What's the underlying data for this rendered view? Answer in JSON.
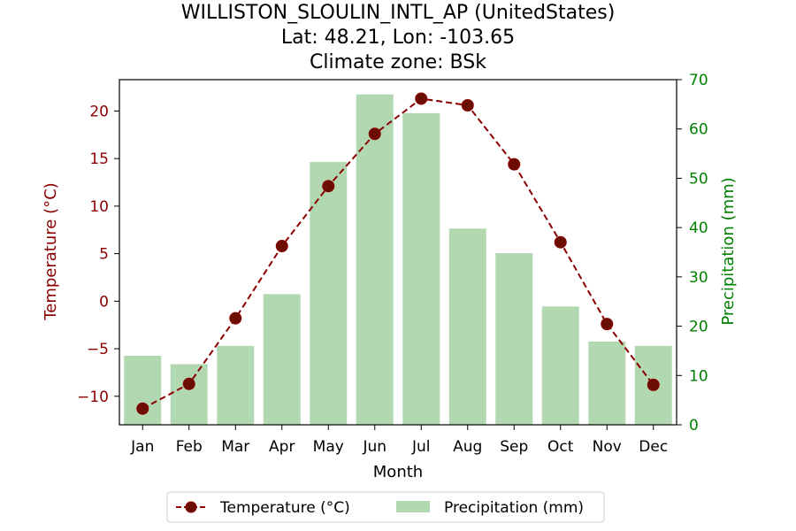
{
  "chart_data": {
    "type": "bar+line",
    "title_lines": [
      "WILLISTON_SLOULIN_INTL_AP (UnitedStates)",
      "Lat: 48.21, Lon: -103.65",
      "Climate zone: BSk"
    ],
    "xlabel": "Month",
    "ylabel_left": "Temperature (°C)",
    "ylabel_right": "Precipitation (mm)",
    "categories": [
      "Jan",
      "Feb",
      "Mar",
      "Apr",
      "May",
      "Jun",
      "Jul",
      "Aug",
      "Sep",
      "Oct",
      "Nov",
      "Dec"
    ],
    "temperature": [
      -11.3,
      -8.7,
      -1.8,
      5.8,
      12.1,
      17.6,
      21.3,
      20.6,
      14.4,
      6.2,
      -2.4,
      -8.8
    ],
    "precipitation": [
      14.0,
      12.3,
      16.0,
      26.5,
      53.3,
      67.0,
      63.2,
      39.8,
      34.8,
      24.0,
      16.9,
      16.0
    ],
    "ylim_left": [
      -13,
      23.3
    ],
    "ylim_right": [
      0,
      70
    ],
    "left_ticks": [
      -10,
      -5,
      0,
      5,
      10,
      15,
      20
    ],
    "right_ticks": [
      0,
      10,
      20,
      30,
      40,
      50,
      60,
      70
    ],
    "left_tick_labels": [
      "−10",
      "−5",
      "0",
      "5",
      "10",
      "15",
      "20"
    ],
    "right_tick_labels": [
      "0",
      "10",
      "20",
      "30",
      "40",
      "50",
      "60",
      "70"
    ],
    "legend": {
      "temperature": "Temperature (°C)",
      "precipitation": "Precipitation (mm)",
      "placement": "below"
    },
    "colors": {
      "temperature_line": "#8b0000",
      "temperature_marker": "#6b0d00",
      "precipitation_bar": "#b2d8b2",
      "left_axis": "#8b0000",
      "right_axis": "#008000"
    }
  }
}
